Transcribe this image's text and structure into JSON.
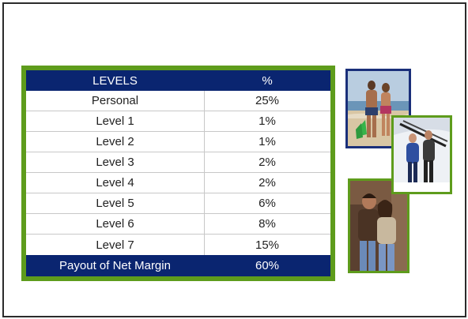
{
  "table": {
    "header": {
      "level": "LEVELS",
      "percent": "%"
    },
    "rows": [
      {
        "level": "Personal",
        "percent": "25%"
      },
      {
        "level": "Level 1",
        "percent": "1%"
      },
      {
        "level": "Level 2",
        "percent": "1%"
      },
      {
        "level": "Level 3",
        "percent": "2%"
      },
      {
        "level": "Level 4",
        "percent": "2%"
      },
      {
        "level": "Level 5",
        "percent": "6%"
      },
      {
        "level": "Level 6",
        "percent": "8%"
      },
      {
        "level": "Level 7",
        "percent": "15%"
      }
    ],
    "footer": {
      "level": "Payout of Net Margin",
      "percent": "60%"
    }
  },
  "colors": {
    "header_bg": "#0a2570",
    "border_green": "#5e9c1c",
    "photo_border_blue": "#1a2f7a"
  },
  "images": [
    {
      "name": "beach-couple-photo"
    },
    {
      "name": "ski-couple-photo"
    },
    {
      "name": "embracing-couple-photo"
    }
  ]
}
